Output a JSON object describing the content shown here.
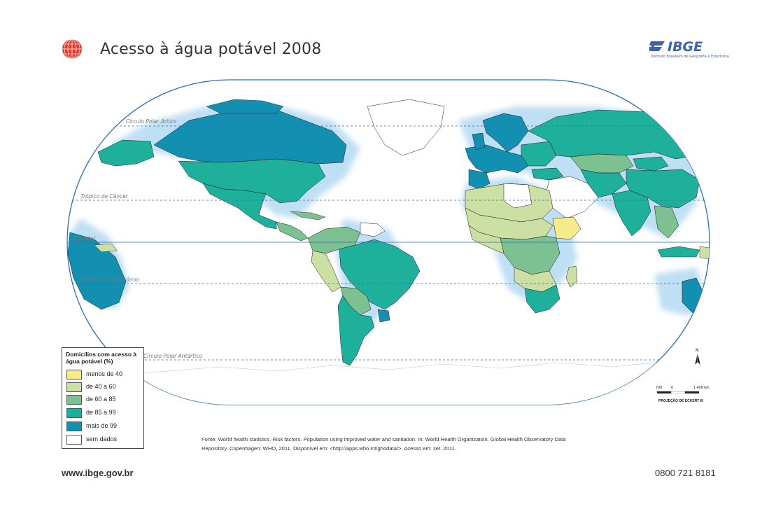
{
  "header": {
    "title": "Acesso à água potável  2008",
    "logo_text": "IBGE",
    "logo_subtitle": "Instituto Brasileiro de Geografia e Estatística"
  },
  "map": {
    "lines": {
      "arctic": "Círculo Polar Ártico",
      "cancer": "Trópico de Câncer",
      "equator": "Equador",
      "capricorn": "Trópico de Capricórnio",
      "antarctic": "Círculo Polar Antártico"
    },
    "colors": {
      "lt40": "#f6ec8a",
      "c40_60": "#cce0a3",
      "c60_85": "#7dc192",
      "c85_99": "#1fb09c",
      "gt99": "#138fb1",
      "none": "#ffffff",
      "ocean_glow": "#cfe6f7",
      "border": "#1a1a1a"
    }
  },
  "legend": {
    "title": "Domicílios com acesso à água potável (%)",
    "items": [
      {
        "label": "menos de 40",
        "color": "#f6ec8a"
      },
      {
        "label": "de 40 a 60",
        "color": "#cce0a3"
      },
      {
        "label": "de 60 a 85",
        "color": "#7dc192"
      },
      {
        "label": "de 85 a 99",
        "color": "#1fb09c"
      },
      {
        "label": "mais de 99",
        "color": "#138fb1"
      },
      {
        "label": "sem dados",
        "color": "#ffffff"
      }
    ]
  },
  "scale": {
    "left": "700",
    "zero": "0",
    "right": "1 400 km",
    "projection": "PROJEÇÃO DE ECKERT III"
  },
  "north_label": "N",
  "source": {
    "line1": "Fonte: World health statistics. Risk factors. Population using improved water and sanitation. In: World Health Organization. Global Health Observatory Data",
    "line2": "Repository. Copenhagen: WHO, 2011. Disponível em: <http://apps.who.int/ghodata/>. Acesso em: set. 2011."
  },
  "footer": {
    "url": "www.ibge.gov.br",
    "phone": "0800 721 8181"
  }
}
